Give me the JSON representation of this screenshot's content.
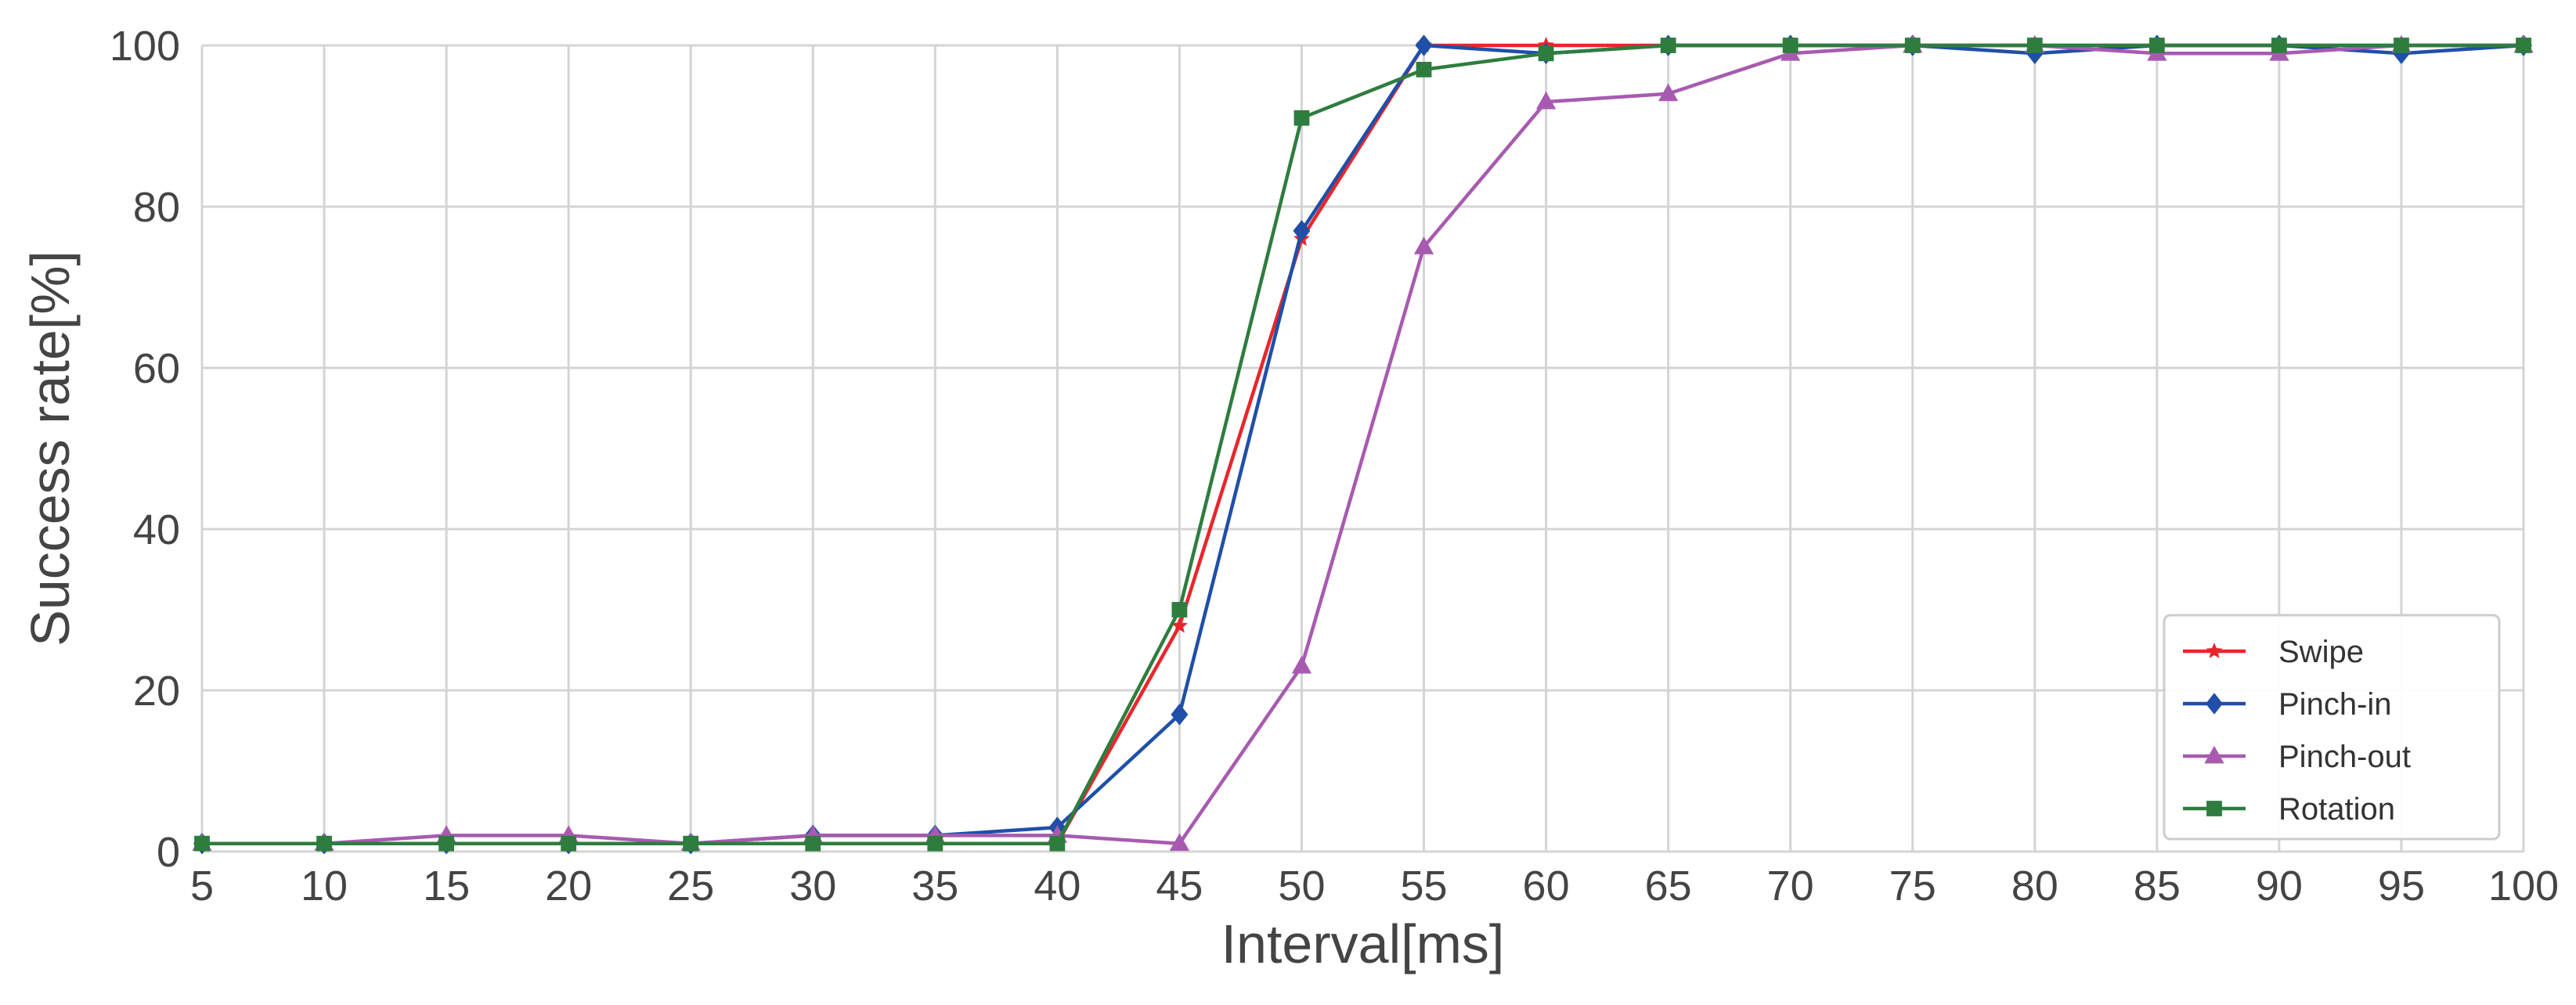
{
  "chart_data": {
    "type": "line",
    "title": "",
    "xlabel": "Interval[ms]",
    "ylabel": "Success rate[%]",
    "x": [
      5,
      10,
      15,
      20,
      25,
      30,
      35,
      40,
      45,
      50,
      55,
      60,
      65,
      70,
      75,
      80,
      85,
      90,
      95,
      100
    ],
    "xlim": [
      5,
      100
    ],
    "ylim": [
      0,
      100
    ],
    "yticks": [
      0,
      20,
      40,
      60,
      80,
      100
    ],
    "grid": true,
    "legend_position": "bottom-right",
    "series": [
      {
        "name": "Swipe",
        "color": "#e8262b",
        "marker": "star",
        "values": [
          1,
          1,
          1,
          1,
          1,
          1,
          1,
          1,
          28,
          76,
          100,
          100,
          100,
          100,
          100,
          100,
          100,
          100,
          100,
          100
        ]
      },
      {
        "name": "Pinch-in",
        "color": "#1f4fa8",
        "marker": "diamond",
        "values": [
          1,
          1,
          1,
          1,
          1,
          2,
          2,
          3,
          17,
          77,
          100,
          99,
          100,
          100,
          100,
          99,
          100,
          100,
          99,
          100
        ]
      },
      {
        "name": "Pinch-out",
        "color": "#a85ab0",
        "marker": "triangle",
        "values": [
          1,
          1,
          2,
          2,
          1,
          2,
          2,
          2,
          1,
          23,
          75,
          93,
          94,
          99,
          100,
          100,
          99,
          99,
          100,
          100
        ]
      },
      {
        "name": "Rotation",
        "color": "#2e7d3e",
        "marker": "square",
        "values": [
          1,
          1,
          1,
          1,
          1,
          1,
          1,
          1,
          30,
          91,
          97,
          99,
          100,
          100,
          100,
          100,
          100,
          100,
          100,
          100
        ]
      }
    ]
  }
}
